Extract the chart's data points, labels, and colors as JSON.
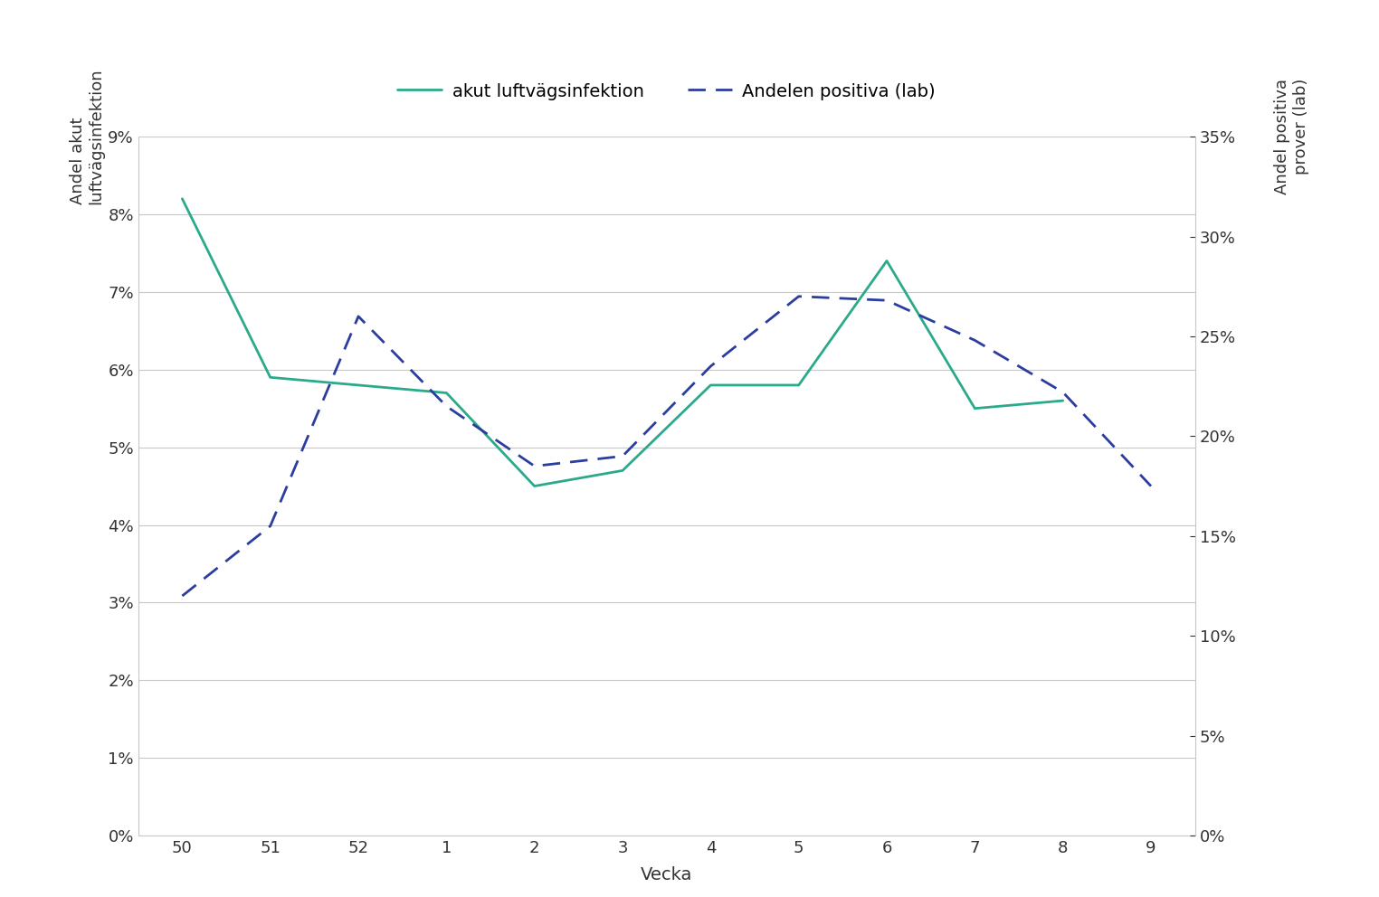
{
  "x_labels": [
    "50",
    "51",
    "52",
    "1",
    "2",
    "3",
    "4",
    "5",
    "6",
    "7",
    "8",
    "9"
  ],
  "x_values": [
    0,
    1,
    2,
    3,
    4,
    5,
    6,
    7,
    8,
    9,
    10,
    11
  ],
  "line1_values": [
    0.082,
    0.059,
    0.058,
    0.057,
    0.045,
    0.047,
    0.058,
    0.058,
    0.074,
    0.055,
    0.056,
    null
  ],
  "line2_values": [
    0.12,
    0.155,
    0.26,
    0.215,
    0.185,
    0.19,
    0.235,
    0.27,
    0.268,
    0.248,
    0.222,
    0.175
  ],
  "line1_color": "#2aaa8a",
  "line2_color": "#2b3d9e",
  "line1_label": "akut luftvägsinfektion",
  "line2_label": "Andelen positiva (lab)",
  "ylabel_left": "Andel akut\nluftvägsinfektion",
  "ylabel_right": "Andel positiva\nprover (lab)",
  "xlabel": "Vecka",
  "ylim_left": [
    0,
    0.09
  ],
  "ylim_right": [
    0,
    0.35
  ],
  "yticks_left": [
    0,
    0.01,
    0.02,
    0.03,
    0.04,
    0.05,
    0.06,
    0.07,
    0.08,
    0.09
  ],
  "ytick_labels_left": [
    "0%",
    "1%",
    "2%",
    "3%",
    "4%",
    "5%",
    "6%",
    "7%",
    "8%",
    "9%"
  ],
  "yticks_right": [
    0,
    0.05,
    0.1,
    0.15,
    0.2,
    0.25,
    0.3,
    0.35
  ],
  "ytick_labels_right": [
    "0%",
    "5%",
    "10%",
    "15%",
    "20%",
    "25%",
    "30%",
    "35%"
  ],
  "background_color": "#ffffff",
  "grid_color": "#c8c8c8",
  "font_color": "#333333"
}
